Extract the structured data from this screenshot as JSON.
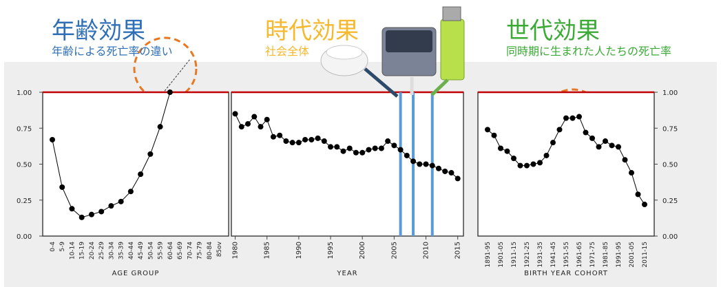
{
  "chart_data": [
    {
      "type": "line",
      "title": "年齢効果",
      "subtitle": "年齢による死亡率の違い",
      "title_color": "#2e6fb7",
      "xlabel": "AGE GROUP",
      "color": "#000000",
      "categories": [
        "0-4",
        "5-9",
        "10-14",
        "15-19",
        "20-24",
        "25-29",
        "30-34",
        "35-39",
        "40-44",
        "45-49",
        "50-54",
        "55-59",
        "60-64",
        "65-69",
        "70-74",
        "75-79",
        "80-84",
        "85ov"
      ],
      "values": [
        0.67,
        0.34,
        0.19,
        0.13,
        0.15,
        0.17,
        0.21,
        0.24,
        0.31,
        0.43,
        0.57,
        0.76,
        1.0,
        null,
        null,
        null,
        null,
        null
      ],
      "ylim": [
        0,
        1
      ],
      "yticks": [
        {
          "value": 0,
          "label": "0.00"
        },
        {
          "value": 0.25,
          "label": "0.25"
        },
        {
          "value": 0.5,
          "label": "0.50"
        },
        {
          "value": 0.75,
          "label": "0.75"
        },
        {
          "value": 1,
          "label": "1.00"
        }
      ],
      "y_axis_side": "left",
      "hline": 1,
      "hline_color": "#c00000"
    },
    {
      "type": "line",
      "title": "時代効果",
      "subtitle": "社会全体",
      "title_color": "#f5b82e",
      "xlabel": "YEAR",
      "color": "#000000",
      "x": [
        1980,
        1981,
        1982,
        1983,
        1984,
        1985,
        1986,
        1987,
        1988,
        1989,
        1990,
        1991,
        1992,
        1993,
        1994,
        1995,
        1996,
        1997,
        1998,
        1999,
        2000,
        2001,
        2002,
        2003,
        2004,
        2005,
        2006,
        2007,
        2008,
        2009,
        2010,
        2011,
        2012,
        2013,
        2014,
        2015
      ],
      "values": [
        0.85,
        0.76,
        0.78,
        0.83,
        0.76,
        0.81,
        0.69,
        0.7,
        0.66,
        0.65,
        0.65,
        0.67,
        0.67,
        0.68,
        0.66,
        0.62,
        0.62,
        0.59,
        0.61,
        0.58,
        0.58,
        0.6,
        0.61,
        0.61,
        0.66,
        0.63,
        0.6,
        0.56,
        0.52,
        0.5,
        0.5,
        0.49,
        0.47,
        0.45,
        0.44,
        0.4
      ],
      "xlim": [
        1979.4,
        2015.9
      ],
      "xticks": [
        1980,
        1985,
        1990,
        1995,
        2000,
        2005,
        2010,
        2015
      ],
      "ylim": [
        0,
        1
      ],
      "hline": 1,
      "hline_color": "#c00000",
      "vlines": [
        2006,
        2008,
        2011
      ],
      "vline_color": "#5b9bd5"
    },
    {
      "type": "line",
      "title": "世代効果",
      "subtitle": "同時期に生まれた人たちの死亡率",
      "title_color": "#3aaa35",
      "xlabel": "BIRTH YEAR COHORT",
      "color": "#000000",
      "categories": [
        "1891-95",
        null,
        "1901-05",
        null,
        "1911-15",
        null,
        "1921-25",
        null,
        "1931-35",
        null,
        "1941-45",
        null,
        "1951-55",
        null,
        "1961-65",
        null,
        "1971-75",
        null,
        "1981-85",
        null,
        "1991-95",
        null,
        "2001-05",
        null,
        "2011-15"
      ],
      "values": [
        0.74,
        0.7,
        0.61,
        0.59,
        0.54,
        0.49,
        0.49,
        0.5,
        0.51,
        0.56,
        0.65,
        0.74,
        0.82,
        0.82,
        0.83,
        0.72,
        0.68,
        0.62,
        0.66,
        0.63,
        0.62,
        0.53,
        0.44,
        0.29,
        0.22
      ],
      "ylim": [
        0,
        1
      ],
      "yticks": [
        {
          "value": 0,
          "label": "0.00"
        },
        {
          "value": 0.25,
          "label": "0.25"
        },
        {
          "value": 0.5,
          "label": "0.50"
        },
        {
          "value": 0.75,
          "label": "0.75"
        },
        {
          "value": 1,
          "label": "1.00"
        }
      ],
      "y_axis_side": "right",
      "hline": 1,
      "hline_color": "#c00000"
    }
  ]
}
